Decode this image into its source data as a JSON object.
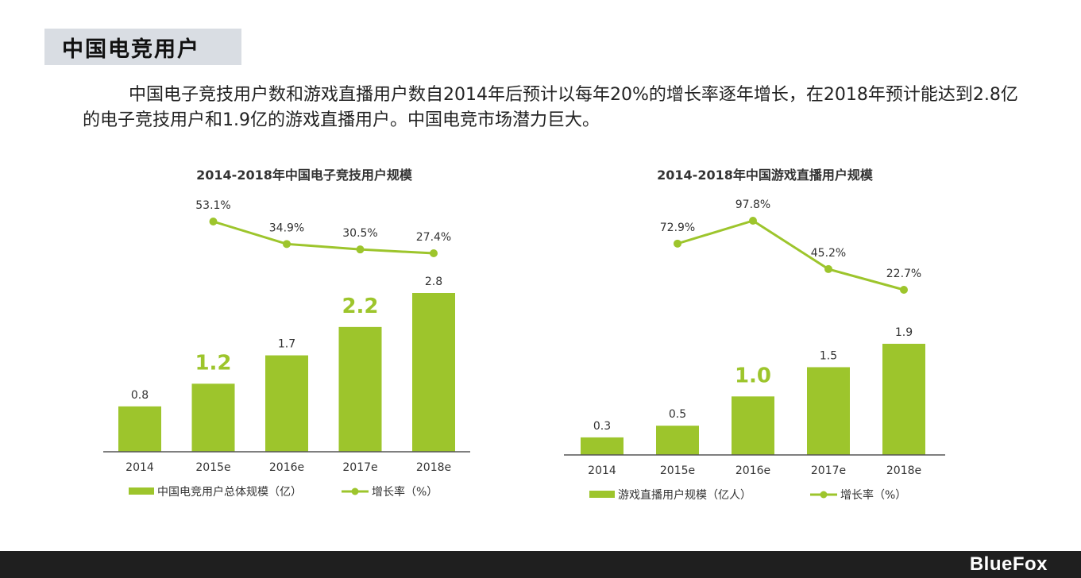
{
  "header": {
    "title": "中国电竞用户"
  },
  "intro": {
    "text": "中国电子竞技用户数和游戏直播用户数自2014年后预计以每年20%的增长率逐年增长，在2018年预计能达到2.8亿的电子竞技用户和1.9亿的游戏直播用户。中国电竞市场潜力巨大。"
  },
  "footer": {
    "logo": "BlueFox"
  },
  "colors": {
    "accent": "#9dc52c",
    "axis": "#555555",
    "text": "#333333"
  },
  "chart_data": [
    {
      "type": "bar",
      "title": "2014-2018年中国电子竞技用户规模",
      "categories": [
        "2014",
        "2015e",
        "2016e",
        "2017e",
        "2018e"
      ],
      "series": [
        {
          "name": "中国电竞用户总体规模（亿）",
          "type": "bar",
          "values": [
            0.8,
            1.2,
            1.7,
            2.2,
            2.8
          ],
          "labels": [
            "0.8",
            "1.2",
            "1.7",
            "2.2",
            "2.8"
          ],
          "highlight": [
            false,
            true,
            false,
            true,
            false
          ]
        },
        {
          "name": "增长率（%）",
          "type": "line",
          "values": [
            null,
            53.1,
            34.9,
            30.5,
            27.4
          ],
          "labels": [
            "",
            "53.1%",
            "34.9%",
            "30.5%",
            "27.4%"
          ]
        }
      ],
      "legend": "bottom"
    },
    {
      "type": "bar",
      "title": "2014-2018年中国游戏直播用户规模",
      "categories": [
        "2014",
        "2015e",
        "2016e",
        "2017e",
        "2018e"
      ],
      "series": [
        {
          "name": "游戏直播用户规模（亿人）",
          "type": "bar",
          "values": [
            0.3,
            0.5,
            1.0,
            1.5,
            1.9
          ],
          "labels": [
            "0.3",
            "0.5",
            "1.0",
            "1.5",
            "1.9"
          ],
          "highlight": [
            false,
            false,
            true,
            false,
            false
          ]
        },
        {
          "name": "增长率（%）",
          "type": "line",
          "values": [
            null,
            72.9,
            97.8,
            45.2,
            22.7
          ],
          "labels": [
            "",
            "72.9%",
            "97.8%",
            "45.2%",
            "22.7%"
          ]
        }
      ],
      "legend": "bottom"
    }
  ]
}
